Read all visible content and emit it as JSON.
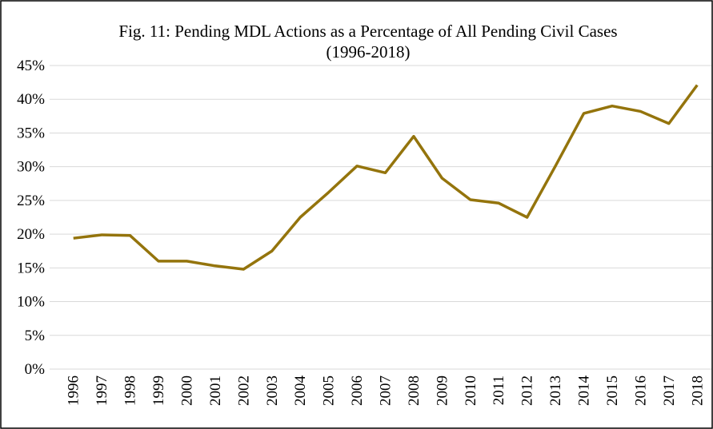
{
  "chart_data": {
    "type": "line",
    "title": "Fig. 11: Pending MDL Actions as a Percentage of All Pending Civil Cases",
    "subtitle": "(1996-2018)",
    "categories": [
      "1996",
      "1997",
      "1998",
      "1999",
      "2000",
      "2001",
      "2002",
      "2003",
      "2004",
      "2005",
      "2006",
      "2007",
      "2008",
      "2009",
      "2010",
      "2011",
      "2012",
      "2013",
      "2014",
      "2015",
      "2016",
      "2017",
      "2018"
    ],
    "series": [
      {
        "name": "Pending MDL Actions as a Percentage of All Pending Civil Cases",
        "color": "#94740c",
        "values": [
          19.4,
          19.9,
          19.8,
          16.0,
          16.0,
          15.3,
          14.8,
          17.5,
          22.5,
          26.2,
          30.1,
          29.1,
          34.5,
          28.3,
          25.1,
          24.6,
          22.5,
          30.1,
          37.9,
          39.0,
          38.2,
          36.4,
          42.1
        ]
      }
    ],
    "ylim": [
      0,
      45
    ],
    "yticks": [
      {
        "value": 0,
        "label": "0%"
      },
      {
        "value": 5,
        "label": "5%"
      },
      {
        "value": 10,
        "label": "10%"
      },
      {
        "value": 15,
        "label": "15%"
      },
      {
        "value": 20,
        "label": "20%"
      },
      {
        "value": 25,
        "label": "25%"
      },
      {
        "value": 30,
        "label": "30%"
      },
      {
        "value": 35,
        "label": "35%"
      },
      {
        "value": 40,
        "label": "40%"
      },
      {
        "value": 45,
        "label": "45%"
      }
    ],
    "grid": true
  }
}
